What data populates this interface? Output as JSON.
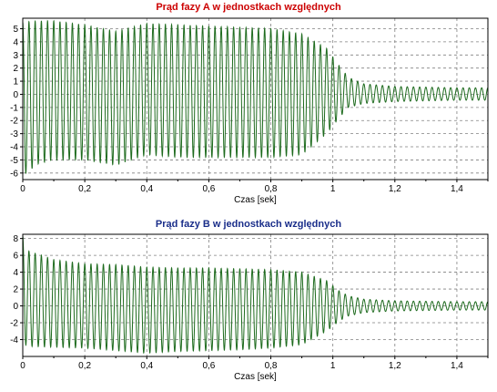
{
  "chart_data": [
    {
      "type": "line",
      "title": "Prąd fazy A w jednostkach względnych",
      "title_color": "#cc0000",
      "xlabel": "Czas [sek]",
      "ylabel": "",
      "xlim": [
        0,
        1.5
      ],
      "ylim": [
        -6.5,
        5.8
      ],
      "xticks": [
        "0",
        "0,2",
        "0,4",
        "0,6",
        "0,8",
        "1",
        "1,2",
        "1,4"
      ],
      "yticks": [
        "5",
        "4",
        "3",
        "2",
        "1",
        "0",
        "-1",
        "-2",
        "-3",
        "-4",
        "-5",
        "-6"
      ],
      "grid": true,
      "line_color": "#1e6b1e",
      "series": [
        {
          "frequency_hz": 50,
          "envelope_t": [
            0,
            0.05,
            0.1,
            0.2,
            0.3,
            0.4,
            0.5,
            0.6,
            0.7,
            0.8,
            0.9,
            0.98,
            1.02,
            1.05,
            1.1,
            1.2,
            1.3,
            1.4,
            1.5
          ],
          "envelope_upper": [
            5.5,
            5.6,
            5.6,
            5.3,
            4.8,
            5.4,
            5.3,
            5.2,
            5.1,
            5.0,
            4.6,
            3.5,
            2.2,
            1.3,
            0.8,
            0.6,
            0.55,
            0.5,
            0.5
          ],
          "envelope_lower": [
            -6.2,
            -5.3,
            -5.0,
            -5.0,
            -5.4,
            -4.6,
            -4.8,
            -4.8,
            -4.8,
            -4.8,
            -4.6,
            -3.0,
            -1.8,
            -1.0,
            -0.7,
            -0.55,
            -0.5,
            -0.45,
            -0.45
          ]
        }
      ]
    },
    {
      "type": "line",
      "title": "Prąd fazy B w jednostkach względnych",
      "title_color": "#1a2e8a",
      "xlabel": "Czas [sek]",
      "ylabel": "",
      "xlim": [
        0,
        1.5
      ],
      "ylim": [
        -6.0,
        8.5
      ],
      "xticks": [
        "0",
        "0,2",
        "0,4",
        "0,6",
        "0,8",
        "1",
        "1,2",
        "1,4"
      ],
      "yticks": [
        "8",
        "6",
        "4",
        "2",
        "0",
        "-2",
        "-4"
      ],
      "grid": true,
      "line_color": "#1e6b1e",
      "series": [
        {
          "frequency_hz": 50,
          "envelope_t": [
            0,
            0.02,
            0.1,
            0.2,
            0.3,
            0.4,
            0.5,
            0.6,
            0.7,
            0.8,
            0.9,
            0.98,
            1.02,
            1.05,
            1.1,
            1.2,
            1.3,
            1.4,
            1.5
          ],
          "envelope_upper": [
            8.3,
            6.5,
            5.5,
            5.0,
            4.9,
            4.6,
            4.5,
            4.5,
            4.4,
            4.3,
            4.0,
            3.0,
            1.8,
            1.2,
            0.8,
            0.6,
            0.55,
            0.5,
            0.5
          ],
          "envelope_lower": [
            -4.5,
            -4.8,
            -4.9,
            -5.0,
            -5.3,
            -5.6,
            -5.4,
            -5.3,
            -5.2,
            -5.0,
            -4.6,
            -3.0,
            -1.8,
            -1.2,
            -0.8,
            -0.6,
            -0.55,
            -0.5,
            -0.5
          ]
        }
      ]
    }
  ]
}
